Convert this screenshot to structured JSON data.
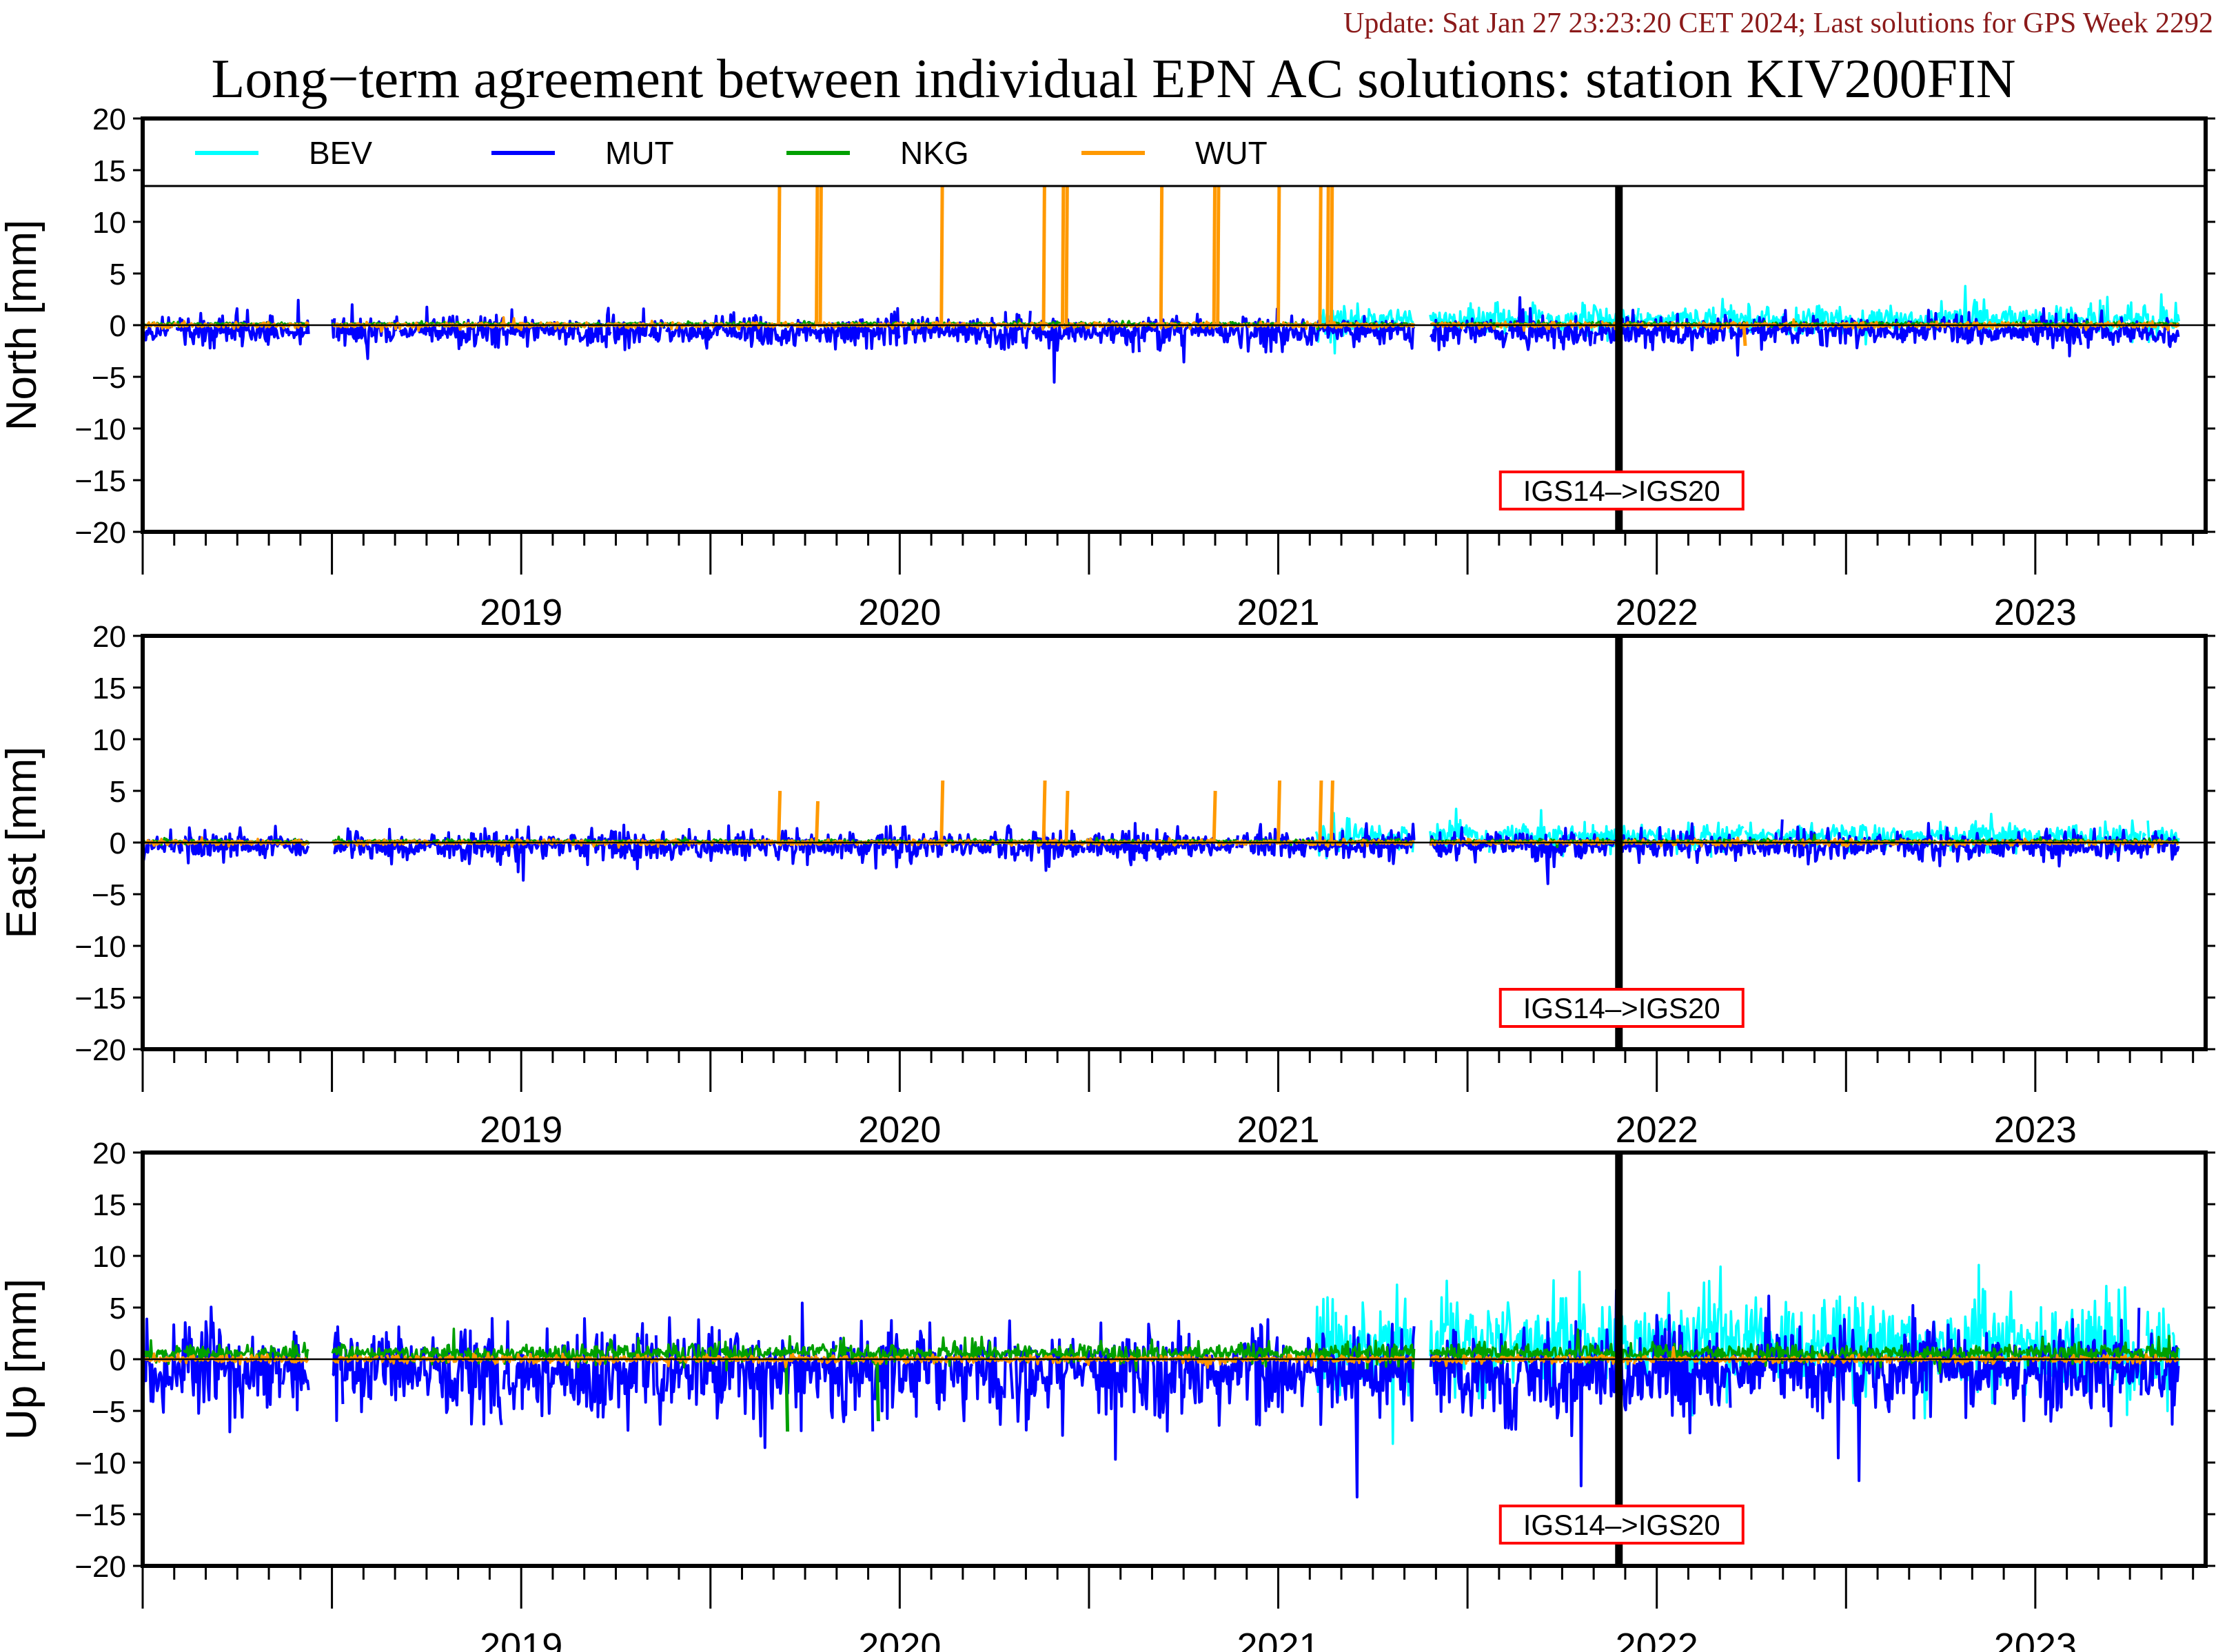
{
  "update": "Update: Sat Jan 27 23:23:20 CET 2024; Last solutions for GPS Week 2292",
  "title": "Long−term agreement between individual EPN AC solutions: station KIV200FIN",
  "chart_data": [
    {
      "type": "line",
      "ylabel": "North [mm]",
      "ylim": [
        -20,
        20
      ],
      "yticks": [
        20,
        15,
        10,
        5,
        0,
        -5,
        -10,
        -15,
        -20
      ],
      "xlim": [
        2018.5,
        2023.95
      ],
      "xticks": [
        "2019",
        "2020",
        "2021",
        "2022",
        "2023"
      ],
      "annotation": "IGS14–>IGS20",
      "annotation_x": 2022.4,
      "legend": "top, inside",
      "series": [
        {
          "name": "BEV",
          "color": "#00ffff",
          "start": 2021.6,
          "end": 2023.88,
          "noise": 0.8,
          "bias": 0.5
        },
        {
          "name": "MUT",
          "color": "#0000ff",
          "start": 2018.5,
          "end": 2023.88,
          "noise": 0.8,
          "bias": -0.6
        },
        {
          "name": "NKG",
          "color": "#00a000",
          "start": 2018.5,
          "end": 2023.88,
          "noise": 0.1,
          "bias": 0.1
        },
        {
          "name": "WUT",
          "color": "#ff9900",
          "start": 2018.5,
          "end": 2023.88,
          "noise": 0.15,
          "bias": 0.0,
          "spikes": [
            [
              2020.18,
              20
            ],
            [
              2020.28,
              20
            ],
            [
              2020.29,
              20
            ],
            [
              2020.61,
              20
            ],
            [
              2020.88,
              20
            ],
            [
              2020.93,
              20
            ],
            [
              2020.94,
              20
            ],
            [
              2021.19,
              20
            ],
            [
              2021.33,
              20
            ],
            [
              2021.34,
              20
            ],
            [
              2021.5,
              20
            ],
            [
              2021.61,
              20
            ],
            [
              2021.63,
              20
            ],
            [
              2021.64,
              20
            ],
            [
              2022.73,
              -2
            ]
          ]
        }
      ]
    },
    {
      "type": "line",
      "ylabel": "East [mm]",
      "ylim": [
        -20,
        20
      ],
      "yticks": [
        20,
        15,
        10,
        5,
        0,
        -5,
        -10,
        -15,
        -20
      ],
      "xlim": [
        2018.5,
        2023.95
      ],
      "xticks": [
        "2019",
        "2020",
        "2021",
        "2022",
        "2023"
      ],
      "annotation": "IGS14–>IGS20",
      "annotation_x": 2022.4,
      "series": [
        {
          "name": "BEV",
          "color": "#00ffff",
          "start": 2021.6,
          "end": 2023.88,
          "noise": 0.7,
          "bias": 0.6
        },
        {
          "name": "MUT",
          "color": "#0000ff",
          "start": 2018.5,
          "end": 2023.88,
          "noise": 0.8,
          "bias": -0.3
        },
        {
          "name": "NKG",
          "color": "#00a000",
          "start": 2018.5,
          "end": 2023.88,
          "noise": 0.1,
          "bias": 0.1
        },
        {
          "name": "WUT",
          "color": "#ff9900",
          "start": 2018.5,
          "end": 2023.88,
          "noise": 0.15,
          "bias": 0.0,
          "spikes": [
            [
              2020.18,
              5
            ],
            [
              2020.28,
              4
            ],
            [
              2020.61,
              6
            ],
            [
              2020.88,
              6
            ],
            [
              2020.94,
              5
            ],
            [
              2021.33,
              5
            ],
            [
              2021.5,
              6
            ],
            [
              2021.61,
              6
            ],
            [
              2021.64,
              6
            ]
          ]
        }
      ]
    },
    {
      "type": "line",
      "ylabel": "Up [mm]",
      "ylim": [
        -20,
        20
      ],
      "yticks": [
        20,
        15,
        10,
        5,
        0,
        -5,
        -10,
        -15,
        -20
      ],
      "xlim": [
        2018.5,
        2023.95
      ],
      "xticks": [
        "2019",
        "2020",
        "2021",
        "2022",
        "2023"
      ],
      "annotation": "IGS14–>IGS20",
      "annotation_x": 2022.4,
      "series": [
        {
          "name": "BEV",
          "color": "#00ffff",
          "start": 2021.6,
          "end": 2023.88,
          "noise": 2.6,
          "bias": 1.5
        },
        {
          "name": "MUT",
          "color": "#0000ff",
          "start": 2018.5,
          "end": 2023.88,
          "noise": 2.4,
          "bias": -1.2
        },
        {
          "name": "NKG",
          "color": "#00a000",
          "start": 2018.5,
          "end": 2023.88,
          "noise": 0.5,
          "bias": 0.6,
          "spikes": [
            [
              2020.2,
              -7
            ],
            [
              2020.44,
              -6
            ]
          ]
        },
        {
          "name": "WUT",
          "color": "#ff9900",
          "start": 2018.5,
          "end": 2023.88,
          "noise": 0.2,
          "bias": 0.0
        }
      ]
    }
  ]
}
